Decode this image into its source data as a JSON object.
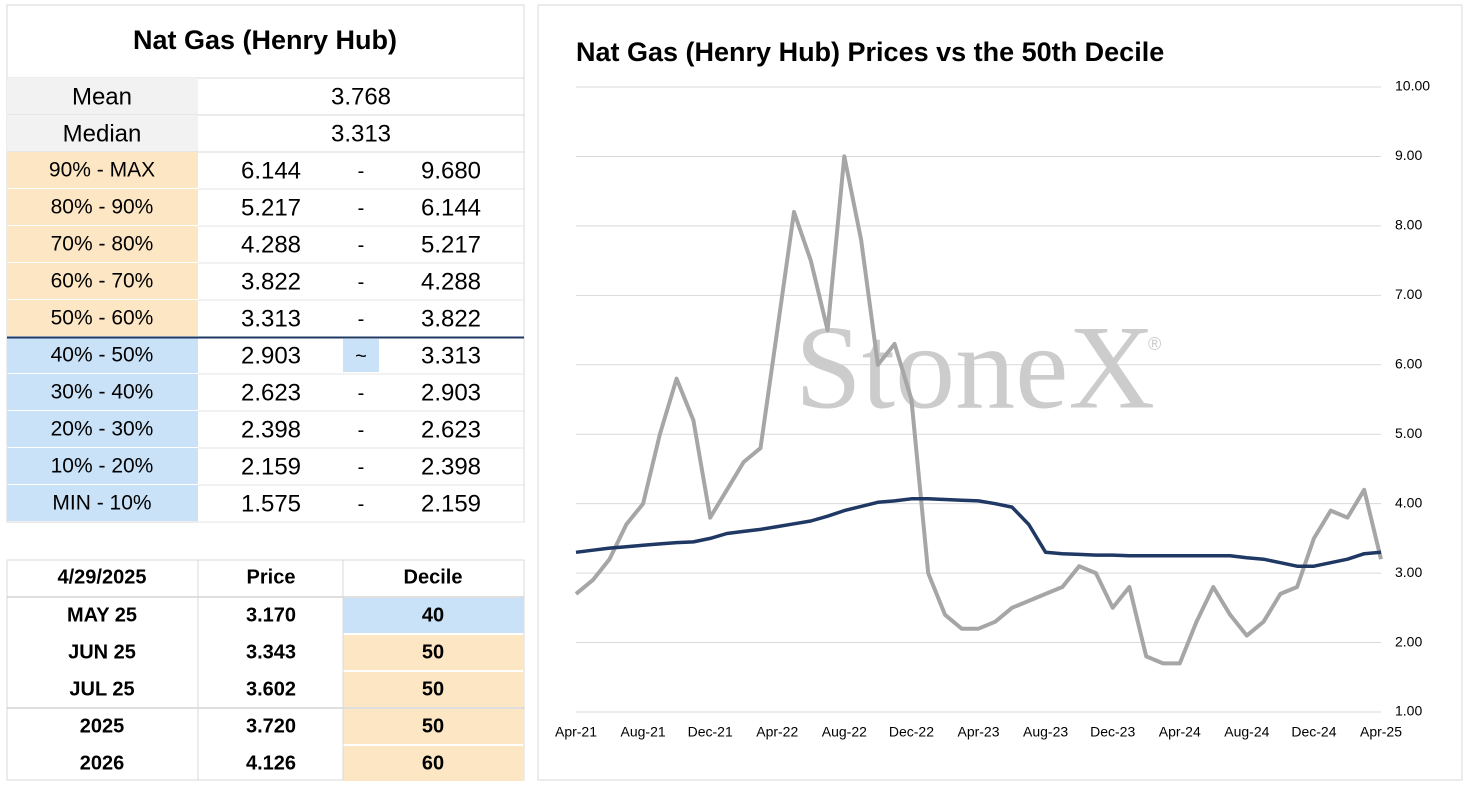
{
  "table": {
    "title": "Nat Gas (Henry Hub)",
    "summary": [
      {
        "label": "Mean",
        "value": "3.768"
      },
      {
        "label": "Median",
        "value": "3.313"
      }
    ],
    "deciles": [
      {
        "label": "90% - MAX",
        "low": "6.144",
        "sep": "-",
        "high": "9.680",
        "color": "#fde6c4"
      },
      {
        "label": "80% - 90%",
        "low": "5.217",
        "sep": "-",
        "high": "6.144",
        "color": "#fde6c4"
      },
      {
        "label": "70% - 80%",
        "low": "4.288",
        "sep": "-",
        "high": "5.217",
        "color": "#fde6c4"
      },
      {
        "label": "60% - 70%",
        "low": "3.822",
        "sep": "-",
        "high": "4.288",
        "color": "#fde6c4"
      },
      {
        "label": "50% - 60%",
        "low": "3.313",
        "sep": "-",
        "high": "3.822",
        "color": "#fde6c4"
      },
      {
        "label": "40% - 50%",
        "low": "2.903",
        "sep": "~",
        "high": "3.313",
        "color": "#c9e2f8",
        "sep_color": "#c9e2f8"
      },
      {
        "label": "30% - 40%",
        "low": "2.623",
        "sep": "-",
        "high": "2.903",
        "color": "#c9e2f8"
      },
      {
        "label": "20% - 30%",
        "low": "2.398",
        "sep": "-",
        "high": "2.623",
        "color": "#c9e2f8"
      },
      {
        "label": "10% - 20%",
        "low": "2.159",
        "sep": "-",
        "high": "2.398",
        "color": "#c9e2f8"
      },
      {
        "label": "MIN - 10%",
        "low": "1.575",
        "sep": "-",
        "high": "2.159",
        "color": "#c9e2f8"
      }
    ],
    "quotes": {
      "header": [
        "4/29/2025",
        "Price",
        "Decile"
      ],
      "rows": [
        {
          "label": "MAY 25",
          "price": "3.170",
          "decile": "40",
          "color": "#c9e2f8"
        },
        {
          "label": "JUN 25",
          "price": "3.343",
          "decile": "50",
          "color": "#fde6c4"
        },
        {
          "label": "JUL 25",
          "price": "3.602",
          "decile": "50",
          "color": "#fde6c4"
        },
        {
          "label": "2025",
          "price": "3.720",
          "decile": "50",
          "color": "#fde6c4"
        },
        {
          "label": "2026",
          "price": "4.126",
          "decile": "60",
          "color": "#fde6c4"
        }
      ]
    }
  },
  "chart_data": {
    "type": "line",
    "title": "Nat Gas (Henry Hub) Prices vs the 50th Decile",
    "watermark": "StoneX",
    "watermark_mark": "®",
    "categories": [
      "Apr-21",
      null,
      null,
      null,
      "Aug-21",
      null,
      null,
      null,
      "Dec-21",
      null,
      null,
      null,
      "Apr-22",
      null,
      null,
      null,
      "Aug-22",
      null,
      null,
      null,
      "Dec-22",
      null,
      null,
      null,
      "Apr-23",
      null,
      null,
      null,
      "Aug-23",
      null,
      null,
      null,
      "Dec-23",
      null,
      null,
      null,
      "Apr-24",
      null,
      null,
      null,
      "Aug-24",
      null,
      null,
      null,
      "Dec-24",
      null,
      null,
      null,
      "Apr-25"
    ],
    "series": [
      {
        "name": "Price",
        "color": "#a6a6a6",
        "width": 4,
        "values": [
          2.7,
          2.9,
          3.2,
          3.7,
          4.0,
          5.0,
          5.8,
          5.2,
          3.8,
          4.2,
          4.6,
          4.8,
          6.5,
          8.2,
          7.5,
          6.5,
          9.0,
          7.8,
          6.0,
          6.3,
          5.5,
          3.0,
          2.4,
          2.2,
          2.2,
          2.3,
          2.5,
          2.6,
          2.7,
          2.8,
          3.1,
          3.0,
          2.5,
          2.8,
          1.8,
          1.7,
          1.7,
          2.3,
          2.8,
          2.4,
          2.1,
          2.3,
          2.7,
          2.8,
          3.5,
          3.9,
          3.8,
          4.2,
          3.2
        ]
      },
      {
        "name": "50th Decile",
        "color": "#1f3864",
        "width": 3.5,
        "values": [
          3.3,
          3.33,
          3.36,
          3.38,
          3.4,
          3.42,
          3.44,
          3.45,
          3.5,
          3.57,
          3.6,
          3.63,
          3.67,
          3.71,
          3.75,
          3.82,
          3.9,
          3.96,
          4.02,
          4.04,
          4.07,
          4.07,
          4.06,
          4.05,
          4.04,
          4.0,
          3.95,
          3.7,
          3.3,
          3.28,
          3.27,
          3.26,
          3.26,
          3.25,
          3.25,
          3.25,
          3.25,
          3.25,
          3.25,
          3.25,
          3.22,
          3.2,
          3.15,
          3.1,
          3.1,
          3.15,
          3.2,
          3.28,
          3.3
        ]
      }
    ],
    "ylim": [
      1,
      10
    ],
    "yticks": [
      {
        "value": 1,
        "label": "1.00"
      },
      {
        "value": 2,
        "label": "2.00"
      },
      {
        "value": 3,
        "label": "3.00"
      },
      {
        "value": 4,
        "label": "4.00"
      },
      {
        "value": 5,
        "label": "5.00"
      },
      {
        "value": 6,
        "label": "6.00"
      },
      {
        "value": 7,
        "label": "7.00"
      },
      {
        "value": 8,
        "label": "8.00"
      },
      {
        "value": 9,
        "label": "9.00"
      },
      {
        "value": 10,
        "label": "10.00"
      }
    ],
    "grid": true
  }
}
